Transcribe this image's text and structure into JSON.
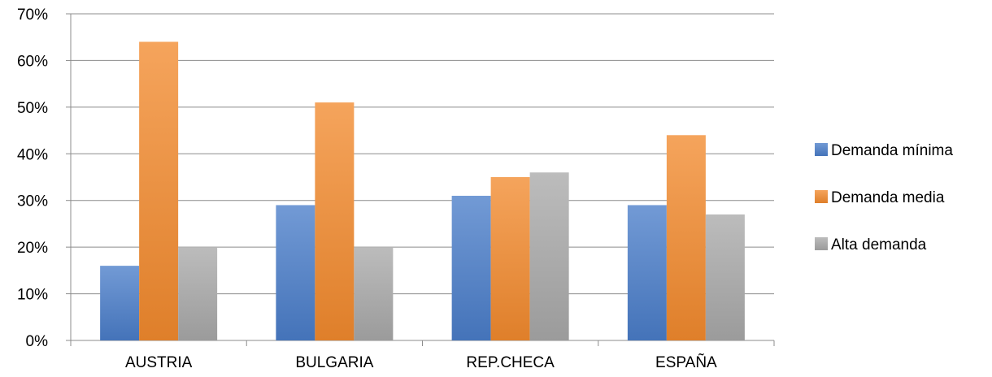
{
  "chart_data": {
    "type": "bar",
    "categories": [
      "AUSTRIA",
      "BULGARIA",
      "REP.CHECA",
      "ESPAÑA"
    ],
    "series": [
      {
        "name": "Demanda mínima",
        "values": [
          16,
          29,
          31,
          29
        ],
        "color": "#4a7dc9"
      },
      {
        "name": "Demanda media",
        "values": [
          64,
          51,
          35,
          44
        ],
        "color": "#f28a2e"
      },
      {
        "name": "Alta demanda",
        "values": [
          20,
          20,
          36,
          27
        ],
        "color": "#a9a9a9"
      }
    ],
    "yticks": [
      "0%",
      "10%",
      "20%",
      "30%",
      "40%",
      "50%",
      "60%",
      "70%"
    ],
    "ylim": [
      0,
      70
    ],
    "grid": true,
    "legend_position": "right"
  }
}
